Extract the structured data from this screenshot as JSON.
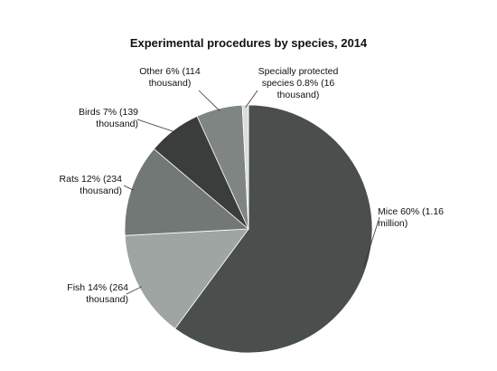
{
  "chart_data": {
    "type": "pie",
    "title": "Experimental procedures by species, 2014",
    "slices": [
      {
        "name": "Mice",
        "percent": 60,
        "count_label": "1.16 million",
        "label": "Mice 60% (1.16\nmillion)",
        "color": "#4a4f4e"
      },
      {
        "name": "Fish",
        "percent": 14,
        "count_label": "264 thousand",
        "label": "Fish 14% (264\nthousand)",
        "color": "#9ea5a3"
      },
      {
        "name": "Rats",
        "percent": 12,
        "count_label": "234 thousand",
        "label": "Rats 12% (234\nthousand)",
        "color": "#727876"
      },
      {
        "name": "Birds",
        "percent": 7,
        "count_label": "139 thousand",
        "label": "Birds 7% (139\nthousand)",
        "color": "#3a3d3c"
      },
      {
        "name": "Other",
        "percent": 6,
        "count_label": "114 thousand",
        "label": "Other 6% (114\nthousand)",
        "color": "#7f8583"
      },
      {
        "name": "Specially protected species",
        "percent": 0.8,
        "count_label": "16 thousand",
        "label": "Specially protected\nspecies 0.8% (16\nthousand)",
        "color": "#d9dedd"
      }
    ],
    "start_angle": "12 o'clock",
    "direction": "clockwise",
    "legend": "none"
  }
}
